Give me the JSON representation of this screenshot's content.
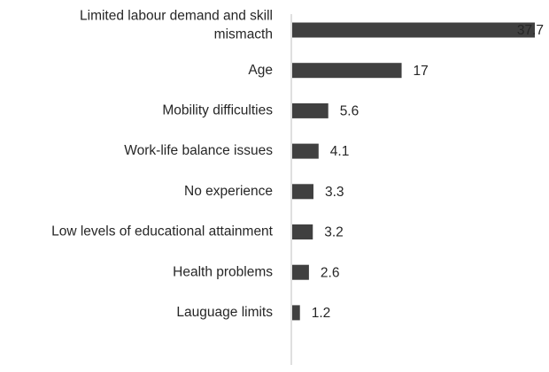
{
  "chart_data": {
    "type": "bar",
    "orientation": "horizontal",
    "categories": [
      "Limited labour demand and skill mismacth",
      "Age",
      "Mobility difficulties",
      "Work-life balance issues",
      "No experience",
      "Low levels of educational attainment",
      "Health problems",
      "Lauguage limits"
    ],
    "category_lines": [
      [
        "Limited labour demand and skill",
        "mismacth"
      ],
      [
        "Age"
      ],
      [
        "Mobility difficulties"
      ],
      [
        "Work-life balance issues"
      ],
      [
        "No experience"
      ],
      [
        "Low levels of educational attainment"
      ],
      [
        "Health problems"
      ],
      [
        "Lauguage limits"
      ]
    ],
    "values": [
      37.7,
      17,
      5.6,
      4.1,
      3.3,
      3.2,
      2.6,
      1.2
    ],
    "value_labels": [
      "37.7",
      "17",
      "5.6",
      "4.1",
      "3.3",
      "3.2",
      "2.6",
      "1.2"
    ],
    "title": "",
    "xlabel": "",
    "ylabel": "",
    "xlim": [
      0,
      38
    ],
    "grid": false,
    "legend": "none",
    "colors": {
      "bar": "#404040",
      "axis": "#bfbfbf",
      "text": "#262626"
    }
  }
}
